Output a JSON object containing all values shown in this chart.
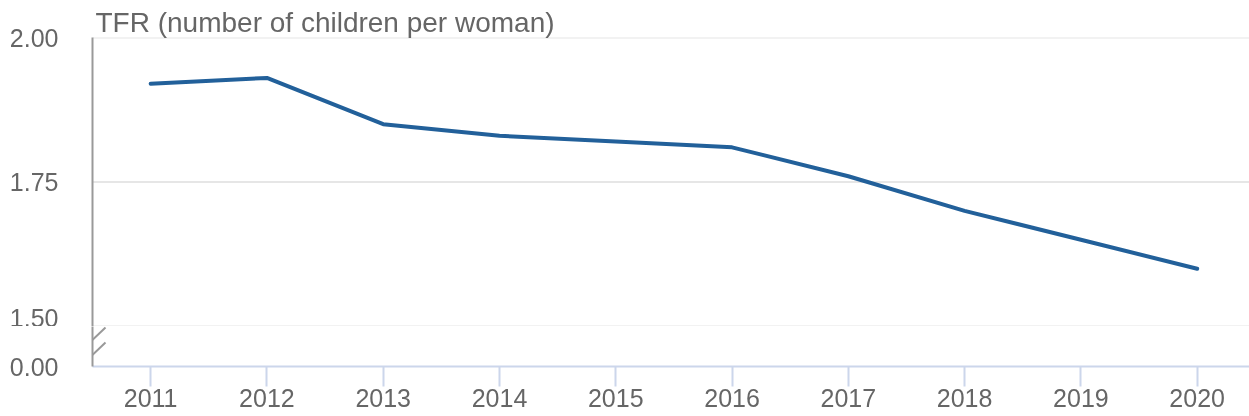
{
  "chart_data": {
    "type": "line",
    "ylabel": "TFR (number of children per woman)",
    "categories": [
      "2011",
      "2012",
      "2013",
      "2014",
      "2015",
      "2016",
      "2017",
      "2018",
      "2019",
      "2020"
    ],
    "series": [
      {
        "color": "#22609a",
        "values": [
          1.92,
          1.93,
          1.85,
          1.83,
          1.82,
          1.81,
          1.76,
          1.7,
          1.65,
          1.6
        ]
      }
    ],
    "ylim": [
      1.5,
      2
    ],
    "yticks": [
      {
        "value": 1.5,
        "label": "1.50"
      },
      1.75,
      {
        "value": 2,
        "label": "2.00"
      }
    ],
    "grid": "y",
    "annotations": [
      "0.00"
    ]
  }
}
